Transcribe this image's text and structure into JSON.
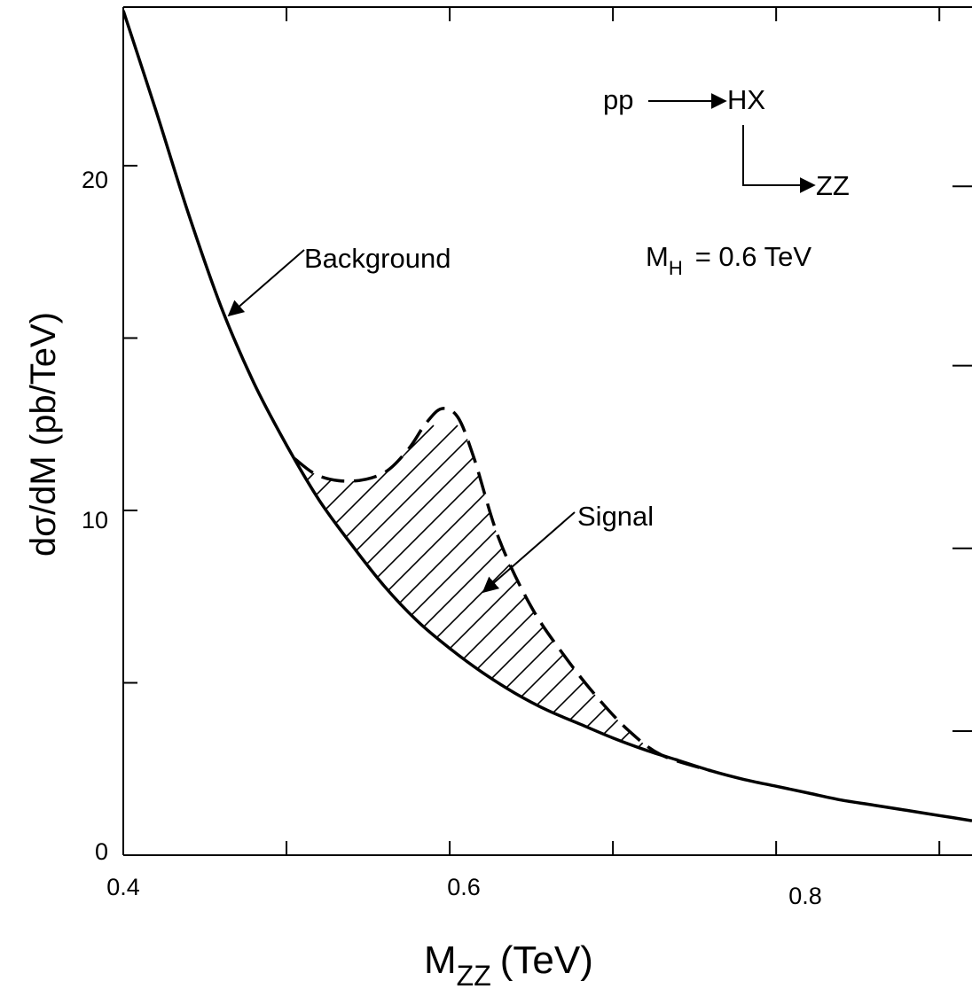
{
  "chart_data": {
    "type": "line",
    "title": "",
    "xlabel_main": "M",
    "xlabel_sub": "ZZ",
    "xlabel_unit": "(TeV)",
    "ylabel": "dσ/dM (pb/TeV)",
    "xlim": [
      0.4,
      0.92
    ],
    "ylim": [
      0,
      24.6
    ],
    "x_ticks": [
      0.4,
      0.6,
      0.8
    ],
    "x_tick_labels": [
      "0.4",
      "0.6",
      "0.8"
    ],
    "x_minor_ticks": [
      0.5,
      0.7,
      0.9
    ],
    "y_ticks": [
      0,
      10,
      20
    ],
    "y_tick_labels": [
      "0",
      "10",
      "20"
    ],
    "y_minor_ticks": [
      5,
      15
    ],
    "right_ticks": [
      3.6,
      8.9,
      14.2,
      19.4
    ],
    "grid": false,
    "series": [
      {
        "name": "Background",
        "style": "solid",
        "x": [
          0.4,
          0.42,
          0.44,
          0.46,
          0.48,
          0.5,
          0.52,
          0.54,
          0.56,
          0.58,
          0.6,
          0.62,
          0.64,
          0.66,
          0.68,
          0.7,
          0.72,
          0.74,
          0.76,
          0.78,
          0.8,
          0.82,
          0.84,
          0.86,
          0.88,
          0.9,
          0.92
        ],
        "y": [
          24.5,
          21.6,
          18.6,
          15.9,
          13.7,
          11.9,
          10.3,
          9.0,
          7.8,
          6.8,
          6.0,
          5.3,
          4.7,
          4.2,
          3.8,
          3.4,
          3.05,
          2.75,
          2.45,
          2.2,
          2.0,
          1.8,
          1.6,
          1.45,
          1.3,
          1.15,
          1.0
        ]
      },
      {
        "name": "Signal",
        "style": "dashed",
        "x": [
          0.505,
          0.52,
          0.54,
          0.56,
          0.575,
          0.585,
          0.595,
          0.605,
          0.615,
          0.63,
          0.65,
          0.67,
          0.69,
          0.71,
          0.73,
          0.76
        ],
        "y": [
          11.5,
          11.0,
          10.85,
          11.1,
          11.8,
          12.5,
          12.95,
          12.7,
          11.5,
          9.2,
          7.2,
          5.8,
          4.6,
          3.6,
          2.9,
          2.45
        ]
      }
    ],
    "annotations": {
      "background_label": "Background",
      "signal_label": "Signal",
      "process_pp": "pp",
      "process_hx": "HX",
      "process_zz": "ZZ",
      "mass_label": "M",
      "mass_sub": "H",
      "mass_value": "= 0.6 TeV"
    },
    "colors": {
      "line": "#000000",
      "background": "#ffffff"
    }
  }
}
